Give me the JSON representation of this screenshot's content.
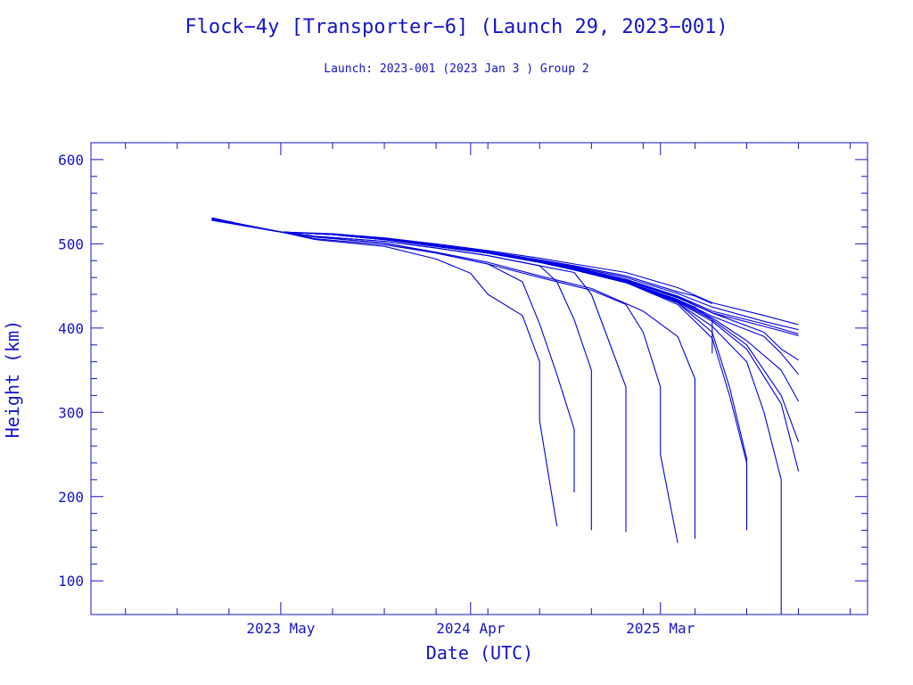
{
  "chart_data": {
    "type": "line",
    "title": "Flock−4y [Transporter−6] (Launch 29, 2023−001)",
    "subtitle": "Launch: 2023-001  (2023 Jan  3 )  Group 2",
    "xlabel": "Date (UTC)",
    "ylabel": "Height (km)",
    "x_unit": "month",
    "xlim": [
      "2022-06",
      "2026-03"
    ],
    "ylim": [
      60,
      620
    ],
    "x_ticks": [
      {
        "x": "2023-05",
        "label": "2023 May"
      },
      {
        "x": "2024-04",
        "label": "2024 Apr"
      },
      {
        "x": "2025-03",
        "label": "2025 Mar"
      }
    ],
    "y_ticks": [
      100,
      200,
      300,
      400,
      500,
      600
    ],
    "grid": false,
    "color": "#0000e0",
    "axis_color": "#1414c8",
    "series": [
      {
        "points": [
          [
            "2023-01",
            531
          ],
          [
            "2023-03",
            522
          ],
          [
            "2023-05",
            514
          ],
          [
            "2023-08",
            511
          ],
          [
            "2023-11",
            506
          ],
          [
            "2024-02",
            499
          ],
          [
            "2024-05",
            491
          ],
          [
            "2024-08",
            481
          ],
          [
            "2024-10",
            474
          ],
          [
            "2025-01",
            462
          ],
          [
            "2025-04",
            443
          ],
          [
            "2025-05",
            438
          ],
          [
            "2025-06",
            429
          ]
        ]
      },
      {
        "points": [
          [
            "2023-01",
            530
          ],
          [
            "2023-03",
            521
          ],
          [
            "2023-05",
            514
          ],
          [
            "2023-08",
            511
          ],
          [
            "2023-11",
            505
          ],
          [
            "2024-02",
            497
          ],
          [
            "2024-05",
            489
          ],
          [
            "2024-08",
            478
          ],
          [
            "2024-10",
            470
          ],
          [
            "2025-01",
            455
          ],
          [
            "2025-04",
            433
          ],
          [
            "2025-05",
            425
          ],
          [
            "2025-06",
            410
          ],
          [
            "2025-06",
            395
          ],
          [
            "2025-06",
            370
          ]
        ]
      },
      {
        "points": [
          [
            "2023-01",
            529
          ],
          [
            "2023-03",
            521
          ],
          [
            "2023-05",
            514
          ],
          [
            "2023-08",
            512
          ],
          [
            "2023-11",
            507
          ],
          [
            "2024-02",
            500
          ],
          [
            "2024-05",
            492
          ],
          [
            "2024-08",
            483
          ],
          [
            "2024-10",
            476
          ],
          [
            "2025-01",
            466
          ],
          [
            "2025-04",
            448
          ],
          [
            "2025-06",
            430
          ],
          [
            "2025-09",
            415
          ],
          [
            "2025-11",
            404
          ]
        ]
      },
      {
        "points": [
          [
            "2023-01",
            528
          ],
          [
            "2023-03",
            521
          ],
          [
            "2023-05",
            514
          ],
          [
            "2023-08",
            511
          ],
          [
            "2023-11",
            506
          ],
          [
            "2024-02",
            498
          ],
          [
            "2024-05",
            490
          ],
          [
            "2024-08",
            480
          ],
          [
            "2024-10",
            473
          ],
          [
            "2025-01",
            460
          ],
          [
            "2025-04",
            441
          ],
          [
            "2025-06",
            425
          ],
          [
            "2025-09",
            408
          ],
          [
            "2025-11",
            398
          ]
        ]
      },
      {
        "points": [
          [
            "2023-01",
            530
          ],
          [
            "2023-03",
            522
          ],
          [
            "2023-05",
            514
          ],
          [
            "2023-08",
            511
          ],
          [
            "2023-11",
            505
          ],
          [
            "2024-02",
            497
          ],
          [
            "2024-05",
            489
          ],
          [
            "2024-08",
            479
          ],
          [
            "2024-10",
            471
          ],
          [
            "2025-01",
            456
          ],
          [
            "2025-04",
            436
          ],
          [
            "2025-06",
            418
          ],
          [
            "2025-09",
            402
          ],
          [
            "2025-11",
            391
          ]
        ]
      },
      {
        "points": [
          [
            "2023-01",
            529
          ],
          [
            "2023-03",
            521
          ],
          [
            "2023-05",
            514
          ],
          [
            "2023-08",
            511
          ],
          [
            "2023-11",
            506
          ],
          [
            "2024-02",
            498
          ],
          [
            "2024-05",
            490
          ],
          [
            "2024-08",
            480
          ],
          [
            "2024-10",
            472
          ],
          [
            "2025-01",
            458
          ],
          [
            "2025-04",
            438
          ],
          [
            "2025-06",
            420
          ],
          [
            "2025-09",
            405
          ],
          [
            "2025-11",
            393
          ]
        ]
      },
      {
        "points": [
          [
            "2023-01",
            530
          ],
          [
            "2023-03",
            522
          ],
          [
            "2023-05",
            514
          ],
          [
            "2023-08",
            511
          ],
          [
            "2023-11",
            506
          ],
          [
            "2024-02",
            498
          ],
          [
            "2024-05",
            490
          ],
          [
            "2024-08",
            479
          ],
          [
            "2024-10",
            471
          ],
          [
            "2025-01",
            457
          ],
          [
            "2025-04",
            437
          ],
          [
            "2025-06",
            418
          ],
          [
            "2025-09",
            395
          ],
          [
            "2025-10",
            375
          ],
          [
            "2025-11",
            362
          ]
        ]
      },
      {
        "points": [
          [
            "2023-01",
            529
          ],
          [
            "2023-03",
            521
          ],
          [
            "2023-05",
            514
          ],
          [
            "2023-08",
            511
          ],
          [
            "2023-11",
            505
          ],
          [
            "2024-02",
            497
          ],
          [
            "2024-05",
            489
          ],
          [
            "2024-08",
            478
          ],
          [
            "2024-10",
            470
          ],
          [
            "2025-01",
            455
          ],
          [
            "2025-04",
            434
          ],
          [
            "2025-06",
            414
          ],
          [
            "2025-09",
            390
          ],
          [
            "2025-10",
            370
          ],
          [
            "2025-11",
            345
          ]
        ]
      },
      {
        "points": [
          [
            "2023-01",
            530
          ],
          [
            "2023-03",
            521
          ],
          [
            "2023-05",
            514
          ],
          [
            "2023-08",
            511
          ],
          [
            "2023-11",
            505
          ],
          [
            "2024-02",
            497
          ],
          [
            "2024-05",
            489
          ],
          [
            "2024-08",
            478
          ],
          [
            "2024-10",
            470
          ],
          [
            "2025-01",
            455
          ],
          [
            "2025-04",
            433
          ],
          [
            "2025-06",
            412
          ],
          [
            "2025-08",
            385
          ],
          [
            "2025-10",
            350
          ],
          [
            "2025-11",
            313
          ]
        ]
      },
      {
        "points": [
          [
            "2023-01",
            529
          ],
          [
            "2023-03",
            521
          ],
          [
            "2023-05",
            514
          ],
          [
            "2023-08",
            511
          ],
          [
            "2023-11",
            505
          ],
          [
            "2024-02",
            497
          ],
          [
            "2024-05",
            489
          ],
          [
            "2024-08",
            478
          ],
          [
            "2024-10",
            469
          ],
          [
            "2025-01",
            454
          ],
          [
            "2025-04",
            432
          ],
          [
            "2025-06",
            410
          ],
          [
            "2025-08",
            380
          ],
          [
            "2025-10",
            320
          ],
          [
            "2025-11",
            265
          ]
        ]
      },
      {
        "points": [
          [
            "2023-01",
            530
          ],
          [
            "2023-03",
            522
          ],
          [
            "2023-05",
            514
          ],
          [
            "2023-08",
            511
          ],
          [
            "2023-11",
            505
          ],
          [
            "2024-02",
            497
          ],
          [
            "2024-05",
            489
          ],
          [
            "2024-08",
            478
          ],
          [
            "2024-10",
            469
          ],
          [
            "2025-01",
            454
          ],
          [
            "2025-04",
            431
          ],
          [
            "2025-06",
            408
          ],
          [
            "2025-08",
            375
          ],
          [
            "2025-10",
            310
          ],
          [
            "2025-11",
            230
          ]
        ]
      },
      {
        "points": [
          [
            "2023-01",
            529
          ],
          [
            "2023-03",
            521
          ],
          [
            "2023-05",
            514
          ],
          [
            "2023-08",
            511
          ],
          [
            "2023-11",
            505
          ],
          [
            "2024-02",
            497
          ],
          [
            "2024-05",
            489
          ],
          [
            "2024-08",
            478
          ],
          [
            "2024-10",
            469
          ],
          [
            "2025-01",
            454
          ],
          [
            "2025-04",
            430
          ],
          [
            "2025-06",
            402
          ],
          [
            "2025-08",
            360
          ],
          [
            "2025-09",
            300
          ],
          [
            "2025-10",
            220
          ],
          [
            "2025-10",
            60
          ]
        ]
      },
      {
        "points": [
          [
            "2023-01",
            530
          ],
          [
            "2023-03",
            521
          ],
          [
            "2023-05",
            514
          ],
          [
            "2023-08",
            511
          ],
          [
            "2023-11",
            505
          ],
          [
            "2024-02",
            497
          ],
          [
            "2024-05",
            489
          ],
          [
            "2024-08",
            478
          ],
          [
            "2024-10",
            469
          ],
          [
            "2025-01",
            454
          ],
          [
            "2025-04",
            430
          ],
          [
            "2025-06",
            395
          ],
          [
            "2025-07",
            330
          ],
          [
            "2025-08",
            245
          ],
          [
            "2025-08",
            170
          ]
        ]
      },
      {
        "points": [
          [
            "2023-01",
            529
          ],
          [
            "2023-03",
            521
          ],
          [
            "2023-05",
            514
          ],
          [
            "2023-08",
            511
          ],
          [
            "2023-11",
            505
          ],
          [
            "2024-02",
            497
          ],
          [
            "2024-05",
            489
          ],
          [
            "2024-08",
            478
          ],
          [
            "2024-10",
            469
          ],
          [
            "2025-01",
            454
          ],
          [
            "2025-04",
            428
          ],
          [
            "2025-06",
            388
          ],
          [
            "2025-07",
            320
          ],
          [
            "2025-08",
            240
          ],
          [
            "2025-08",
            160
          ]
        ]
      },
      {
        "points": [
          [
            "2023-01",
            530
          ],
          [
            "2023-03",
            522
          ],
          [
            "2023-05",
            514
          ],
          [
            "2023-07",
            508
          ],
          [
            "2023-11",
            501
          ],
          [
            "2024-02",
            490
          ],
          [
            "2024-05",
            478
          ],
          [
            "2024-08",
            462
          ],
          [
            "2024-11",
            447
          ],
          [
            "2025-02",
            420
          ],
          [
            "2025-04",
            390
          ],
          [
            "2025-05",
            340
          ],
          [
            "2025-05",
            265
          ],
          [
            "2025-05",
            200
          ],
          [
            "2025-05",
            150
          ]
        ]
      },
      {
        "points": [
          [
            "2023-01",
            528
          ],
          [
            "2023-03",
            521
          ],
          [
            "2023-05",
            514
          ],
          [
            "2023-07",
            506
          ],
          [
            "2023-11",
            499
          ],
          [
            "2024-02",
            489
          ],
          [
            "2024-05",
            476
          ],
          [
            "2024-08",
            460
          ],
          [
            "2024-11",
            445
          ],
          [
            "2025-01",
            428
          ],
          [
            "2025-02",
            395
          ],
          [
            "2025-03",
            330
          ],
          [
            "2025-03",
            250
          ],
          [
            "2025-04",
            145
          ]
        ]
      },
      {
        "points": [
          [
            "2023-01",
            530
          ],
          [
            "2023-03",
            522
          ],
          [
            "2023-05",
            514
          ],
          [
            "2023-07",
            509
          ],
          [
            "2023-11",
            503
          ],
          [
            "2024-02",
            495
          ],
          [
            "2024-05",
            486
          ],
          [
            "2024-08",
            474
          ],
          [
            "2024-10",
            466
          ],
          [
            "2024-11",
            440
          ],
          [
            "2024-12",
            385
          ],
          [
            "2025-01",
            330
          ],
          [
            "2025-01",
            250
          ],
          [
            "2025-01",
            158
          ]
        ]
      },
      {
        "points": [
          [
            "2023-01",
            529
          ],
          [
            "2023-03",
            521
          ],
          [
            "2023-05",
            514
          ],
          [
            "2023-07",
            509
          ],
          [
            "2023-11",
            503
          ],
          [
            "2024-02",
            495
          ],
          [
            "2024-05",
            486
          ],
          [
            "2024-08",
            474
          ],
          [
            "2024-09",
            455
          ],
          [
            "2024-10",
            410
          ],
          [
            "2024-11",
            350
          ],
          [
            "2024-11",
            270
          ],
          [
            "2024-11",
            160
          ]
        ]
      },
      {
        "points": [
          [
            "2023-01",
            530
          ],
          [
            "2023-03",
            522
          ],
          [
            "2023-05",
            514
          ],
          [
            "2023-07",
            508
          ],
          [
            "2023-11",
            501
          ],
          [
            "2024-02",
            489
          ],
          [
            "2024-05",
            476
          ],
          [
            "2024-07",
            455
          ],
          [
            "2024-08",
            405
          ],
          [
            "2024-09",
            345
          ],
          [
            "2024-10",
            280
          ],
          [
            "2024-10",
            205
          ]
        ]
      },
      {
        "points": [
          [
            "2023-01",
            529
          ],
          [
            "2023-03",
            521
          ],
          [
            "2023-05",
            514
          ],
          [
            "2023-07",
            505
          ],
          [
            "2023-11",
            497
          ],
          [
            "2024-02",
            482
          ],
          [
            "2024-04",
            465
          ],
          [
            "2024-05",
            440
          ],
          [
            "2024-07",
            415
          ],
          [
            "2024-08",
            360
          ],
          [
            "2024-08",
            290
          ],
          [
            "2024-09",
            165
          ]
        ]
      }
    ]
  }
}
